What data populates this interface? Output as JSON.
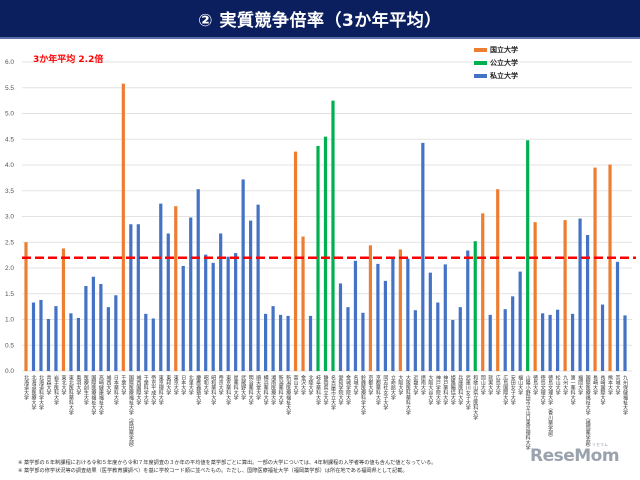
{
  "header": {
    "title": "② 実質競争倍率（3か年平均）"
  },
  "chart_data": {
    "type": "bar",
    "title": "② 実質競争倍率（3か年平均）",
    "ylim": [
      0,
      6.0
    ],
    "yticks": [
      "0.0",
      "0.5",
      "1.0",
      "1.5",
      "2.0",
      "2.5",
      "3.0",
      "3.5",
      "4.0",
      "4.5",
      "5.0",
      "5.5",
      "6.0"
    ],
    "grid": true,
    "legend_placement": "top-right",
    "legend": [
      {
        "key": "national",
        "label": "国立大学",
        "color": "#ed7d31"
      },
      {
        "key": "public",
        "label": "公立大学",
        "color": "#00b050"
      },
      {
        "key": "private",
        "label": "私立大学",
        "color": "#4472c4"
      }
    ],
    "average": {
      "value": 2.2,
      "label": "3か年平均  2.2倍",
      "color": "#ff0000"
    },
    "categories": [
      "北海道大学",
      "北海道医療大学",
      "北海道科学大学",
      "青森大学",
      "岩手医科大学",
      "東北大学",
      "東北医科薬科大学",
      "奥羽大学",
      "医療創生大学",
      "国際医療福祉大学",
      "高崎健康福祉大学",
      "城西大学",
      "日本薬科大学",
      "千葉大学",
      "国際医療福祉大学（成田薬学部）",
      "城西国際大学",
      "千葉科学大学",
      "帝京平成大学",
      "東京理科大学",
      "東邦大学",
      "東京大学",
      "日本大学",
      "北里大学",
      "慶應義塾大学",
      "昭和大学",
      "昭和薬科大学",
      "帝京大学",
      "東京薬科大学",
      "星薬科大学",
      "武蔵野大学",
      "明治薬科大学",
      "順天堂大学",
      "横浜薬科大学",
      "湘南医療大学",
      "新潟薬科大学",
      "新潟医療福祉大学",
      "富山大学",
      "金沢大学",
      "北陸大学",
      "岐阜薬科大学",
      "静岡県立大学",
      "名古屋市立大学",
      "愛知学院大学",
      "金城学院大学",
      "名城大学",
      "鈴鹿医療科学大学",
      "京都大学",
      "京都薬科大学",
      "同志社女子大学",
      "立命館大学",
      "大阪大学",
      "大阪医科薬科大学",
      "近畿大学",
      "摂南大学",
      "大阪大谷大学",
      "神戸学院大学",
      "神戸薬科大学",
      "姫路獨協大学",
      "兵庫医科大学",
      "武庫川女子大学",
      "和歌山県立医科大学",
      "岡山大学",
      "就実大学",
      "広島大学",
      "広島国際大学",
      "安田女子大学",
      "福山大学",
      "山陽小野田市立山口東京理科大学",
      "徳島大学",
      "徳島文理大学",
      "徳島文理大学（香川薬学部）",
      "松山大学",
      "九州大学",
      "第一薬科大学",
      "福岡大学",
      "国際医療福祉大学（福岡薬学部）",
      "長崎大学",
      "長崎国際大学",
      "熊本大学",
      "崇城大学",
      "九州保健福祉大学"
    ],
    "values": [
      2.5,
      1.33,
      1.38,
      1.01,
      1.26,
      2.38,
      1.12,
      1.03,
      1.65,
      1.83,
      1.69,
      1.24,
      1.47,
      5.58,
      2.85,
      2.85,
      1.11,
      1.02,
      3.25,
      2.67,
      3.2,
      2.04,
      2.98,
      3.53,
      2.26,
      2.1,
      2.67,
      2.22,
      2.29,
      3.72,
      2.92,
      3.23,
      1.11,
      1.26,
      1.09,
      1.07,
      4.26,
      2.61,
      1.07,
      4.37,
      4.55,
      5.25,
      1.7,
      1.24,
      2.14,
      1.13,
      2.44,
      2.08,
      1.75,
      2.18,
      2.36,
      2.18,
      1.18,
      4.43,
      1.91,
      1.33,
      2.07,
      0.99,
      1.24,
      2.34,
      2.52,
      3.06,
      1.09,
      3.53,
      1.2,
      1.45,
      1.93,
      4.48,
      2.89,
      1.12,
      1.09,
      1.19,
      2.93,
      1.11,
      2.96,
      2.64,
      3.95,
      1.29,
      4.01,
      2.12,
      1.08
    ],
    "groups": [
      "national",
      "private",
      "private",
      "private",
      "private",
      "national",
      "private",
      "private",
      "private",
      "private",
      "private",
      "private",
      "private",
      "national",
      "private",
      "private",
      "private",
      "private",
      "private",
      "private",
      "national",
      "private",
      "private",
      "private",
      "private",
      "private",
      "private",
      "private",
      "private",
      "private",
      "private",
      "private",
      "private",
      "private",
      "private",
      "private",
      "national",
      "national",
      "private",
      "public",
      "public",
      "public",
      "private",
      "private",
      "private",
      "private",
      "national",
      "private",
      "private",
      "private",
      "national",
      "private",
      "private",
      "private",
      "private",
      "private",
      "private",
      "private",
      "private",
      "private",
      "public",
      "national",
      "private",
      "national",
      "private",
      "private",
      "private",
      "public",
      "national",
      "private",
      "private",
      "private",
      "national",
      "private",
      "private",
      "private",
      "national",
      "private",
      "national",
      "private",
      "private"
    ]
  },
  "notes": [
    "※ 薬学部の６年制課程における令和５年度から令和７年度調査の３か年の平均値を薬学部ごとに算出。一部の大学については、4年制課程の入学者等の値も含んだ値となっている。",
    "※ 薬学部の修学状況等の調査結果（医学教育課調べ）を基に学校コード順に並べたもの。ただし、国際医療福祉大学（福岡薬学部）は所在地である福岡県として記載。"
  ],
  "watermark": {
    "text": "ReseMom",
    "sub": "リセマム"
  }
}
